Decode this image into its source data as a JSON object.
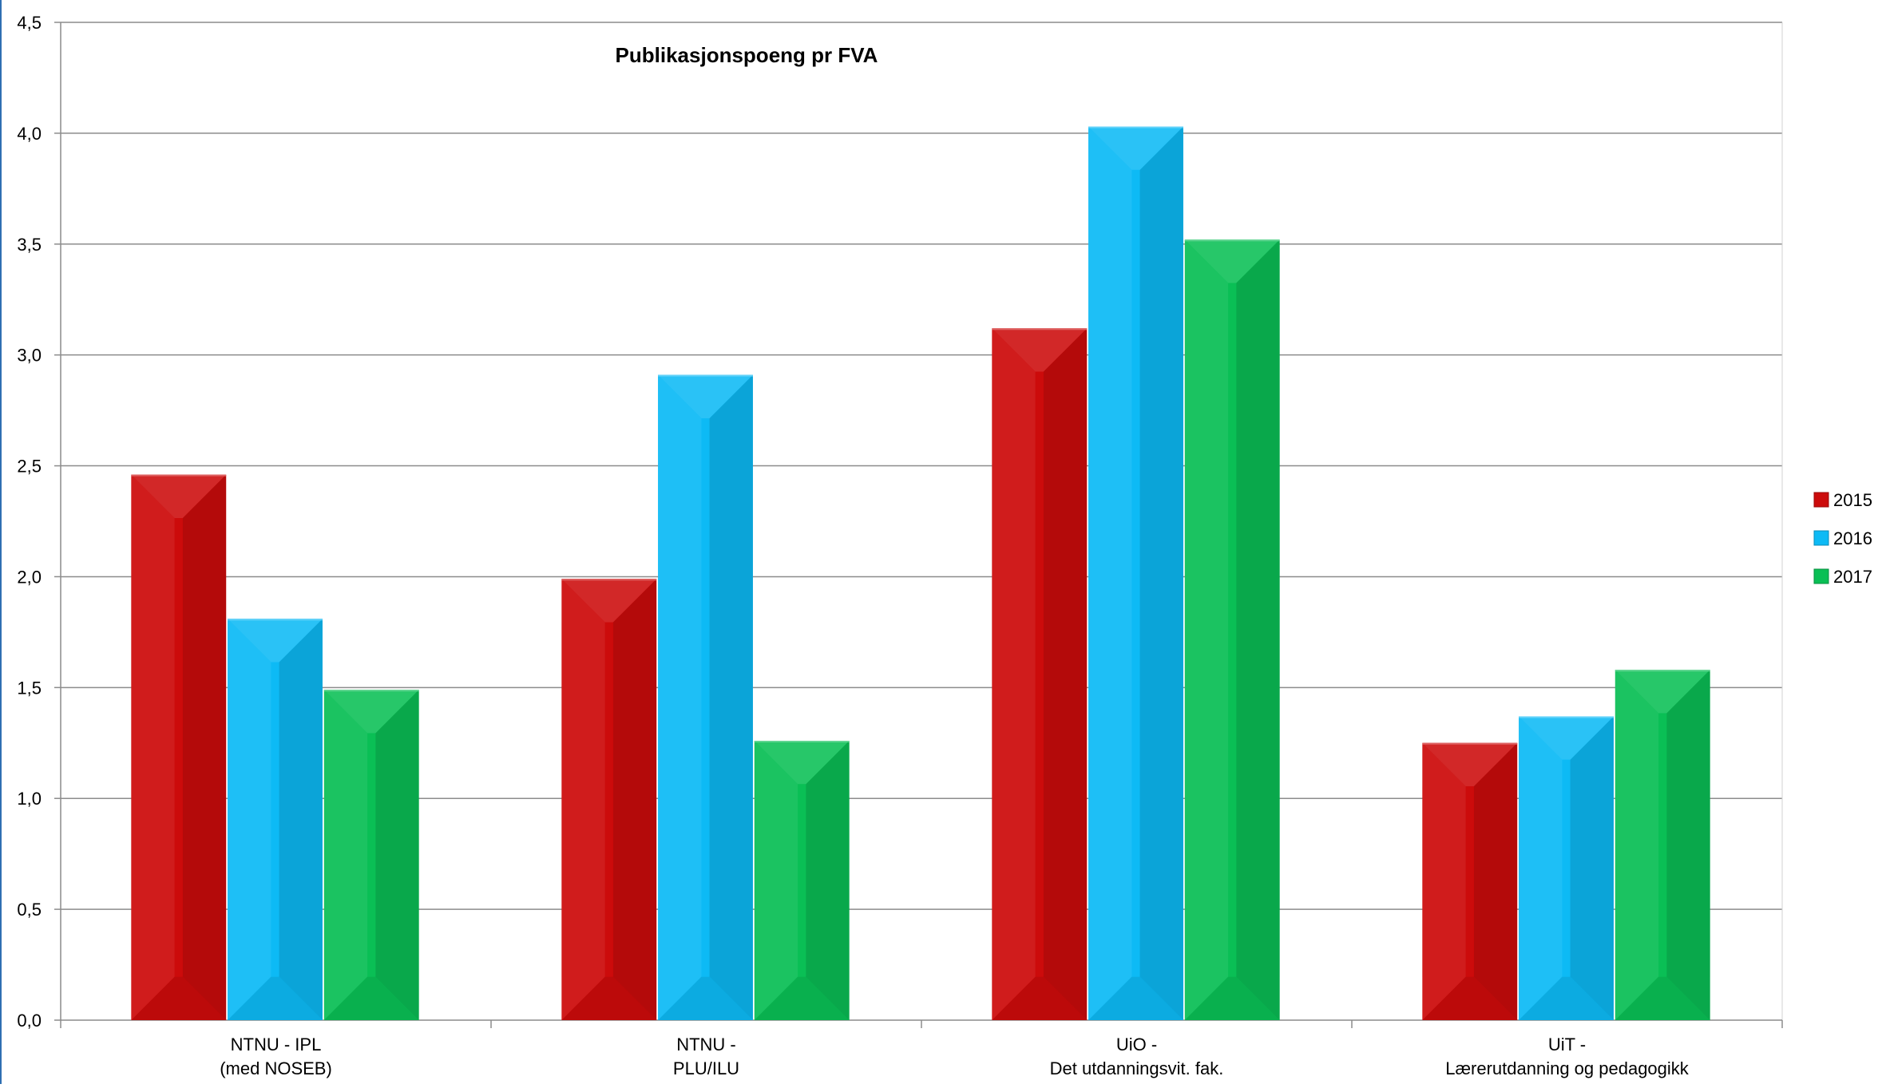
{
  "chart_data": {
    "type": "bar",
    "title": "Publikasjonspoeng pr FVA",
    "xlabel": "",
    "ylabel": "",
    "ylim": [
      0,
      4.5
    ],
    "y_ticks": [
      "0,0",
      "0,5",
      "1,0",
      "1,5",
      "2,0",
      "2,5",
      "3,0",
      "3,5",
      "4,0",
      "4,5"
    ],
    "categories": [
      [
        "NTNU - IPL",
        "(med NOSEB)"
      ],
      [
        "NTNU -",
        "PLU/ILU"
      ],
      [
        "UiO -",
        "Det utdanningsvit. fak."
      ],
      [
        "UiT -",
        "Lærerutdanning og pedagogikk"
      ]
    ],
    "series": [
      {
        "name": "2015",
        "values": [
          2.46,
          1.99,
          3.12,
          1.25
        ],
        "color": "#cc0b0b"
      },
      {
        "name": "2016",
        "values": [
          1.81,
          2.91,
          4.03,
          1.37
        ],
        "color": "#0dbaf5"
      },
      {
        "name": "2017",
        "values": [
          1.49,
          1.26,
          3.52,
          1.58
        ],
        "color": "#0abf55"
      }
    ],
    "grid": true,
    "legend_position": "right"
  }
}
